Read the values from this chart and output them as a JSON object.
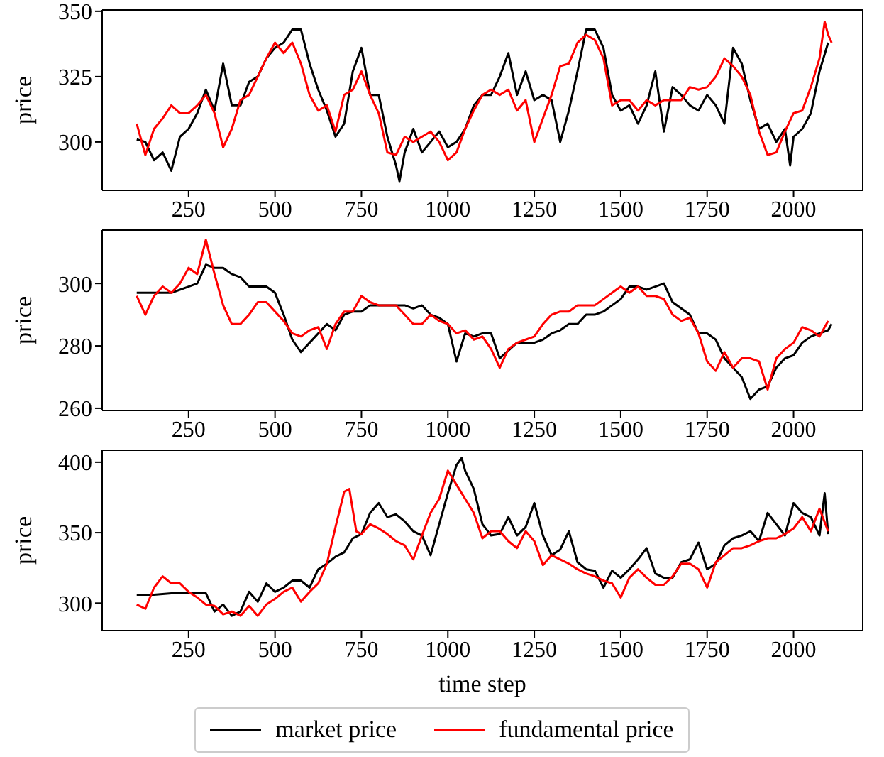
{
  "chart_data": [
    {
      "type": "line",
      "ylabel": "price",
      "legend": "bottom",
      "xlim": [
        0,
        2200
      ],
      "xticks": [
        250,
        500,
        750,
        1000,
        1250,
        1500,
        1750,
        2000
      ],
      "ylim": [
        281.5,
        350.5
      ],
      "yticks": [
        300,
        325,
        350
      ],
      "series": [
        {
          "name": "market price",
          "color": "#000000",
          "x": [
            100,
            125,
            150,
            175,
            200,
            225,
            250,
            275,
            300,
            325,
            350,
            375,
            400,
            425,
            450,
            475,
            500,
            525,
            550,
            575,
            600,
            625,
            650,
            675,
            700,
            725,
            750,
            775,
            800,
            825,
            850,
            860,
            875,
            900,
            925,
            950,
            975,
            1000,
            1025,
            1050,
            1075,
            1100,
            1125,
            1150,
            1175,
            1200,
            1225,
            1250,
            1275,
            1300,
            1325,
            1350,
            1375,
            1400,
            1425,
            1450,
            1475,
            1500,
            1525,
            1550,
            1575,
            1600,
            1625,
            1650,
            1675,
            1700,
            1725,
            1750,
            1775,
            1800,
            1825,
            1850,
            1875,
            1900,
            1925,
            1950,
            1975,
            1990,
            2000,
            2025,
            2050,
            2075,
            2100
          ],
          "values": [
            301,
            300,
            293,
            296,
            289,
            302,
            305,
            311,
            320,
            312,
            330,
            314,
            314,
            323,
            325,
            332,
            336,
            338,
            343,
            343,
            330,
            320,
            312,
            302,
            307,
            327,
            336,
            318,
            318,
            302,
            291,
            285,
            296,
            305,
            296,
            300,
            304,
            298,
            300,
            305,
            314,
            318,
            318,
            325,
            334,
            318,
            327,
            316,
            318,
            316,
            300,
            312,
            327,
            343,
            343,
            336,
            318,
            312,
            314,
            307,
            314,
            327,
            304,
            321,
            318,
            314,
            312,
            318,
            314,
            307,
            336,
            330,
            316,
            305,
            307,
            300,
            305,
            291,
            302,
            305,
            311,
            327,
            338
          ]
        },
        {
          "name": "fundamental price",
          "color": "#ff0000",
          "x": [
            100,
            125,
            150,
            175,
            200,
            225,
            250,
            275,
            300,
            325,
            350,
            375,
            400,
            425,
            450,
            475,
            500,
            525,
            550,
            575,
            600,
            625,
            650,
            675,
            700,
            725,
            750,
            775,
            800,
            825,
            850,
            875,
            900,
            925,
            950,
            975,
            1000,
            1025,
            1050,
            1075,
            1100,
            1125,
            1150,
            1175,
            1200,
            1225,
            1250,
            1275,
            1300,
            1325,
            1350,
            1375,
            1400,
            1425,
            1450,
            1475,
            1500,
            1525,
            1550,
            1575,
            1600,
            1625,
            1650,
            1675,
            1700,
            1725,
            1750,
            1775,
            1800,
            1825,
            1850,
            1875,
            1900,
            1925,
            1950,
            1975,
            2000,
            2025,
            2050,
            2075,
            2090,
            2100,
            2110
          ],
          "values": [
            307,
            295,
            305,
            309,
            314,
            311,
            311,
            314,
            318,
            311,
            298,
            305,
            316,
            318,
            325,
            332,
            338,
            334,
            338,
            330,
            318,
            312,
            314,
            304,
            318,
            320,
            327,
            318,
            311,
            296,
            295,
            302,
            300,
            302,
            304,
            300,
            293,
            296,
            305,
            312,
            318,
            320,
            318,
            320,
            312,
            316,
            300,
            309,
            318,
            329,
            330,
            338,
            341,
            339,
            332,
            314,
            316,
            316,
            312,
            316,
            314,
            316,
            316,
            316,
            321,
            320,
            321,
            325,
            332,
            329,
            325,
            318,
            304,
            295,
            296,
            304,
            311,
            312,
            321,
            332,
            346,
            341,
            338
          ]
        }
      ]
    },
    {
      "type": "line",
      "ylabel": "price",
      "xlim": [
        0,
        2200
      ],
      "xticks": [
        250,
        500,
        750,
        1000,
        1250,
        1500,
        1750,
        2000
      ],
      "ylim": [
        259.3,
        317.1
      ],
      "yticks": [
        260,
        280,
        300
      ],
      "series": [
        {
          "color": "#000000",
          "x": [
            100,
            150,
            200,
            250,
            275,
            300,
            325,
            350,
            375,
            400,
            425,
            450,
            475,
            500,
            525,
            550,
            575,
            600,
            625,
            650,
            675,
            700,
            725,
            750,
            775,
            800,
            825,
            850,
            875,
            900,
            925,
            950,
            975,
            1000,
            1025,
            1050,
            1075,
            1100,
            1125,
            1150,
            1200,
            1225,
            1250,
            1275,
            1300,
            1325,
            1350,
            1375,
            1400,
            1425,
            1450,
            1475,
            1500,
            1525,
            1550,
            1575,
            1600,
            1625,
            1650,
            1675,
            1700,
            1725,
            1750,
            1775,
            1800,
            1825,
            1850,
            1875,
            1900,
            1925,
            1950,
            1975,
            2000,
            2025,
            2050,
            2075,
            2100,
            2110
          ],
          "values": [
            297,
            297,
            297,
            299,
            300,
            306,
            305,
            305,
            303,
            302,
            299,
            299,
            299,
            297,
            290,
            282,
            278,
            281,
            284,
            287,
            285,
            290,
            291,
            291,
            293,
            293,
            293,
            293,
            293,
            292,
            293,
            290,
            289,
            287,
            275,
            284,
            283,
            284,
            284,
            276,
            281,
            281,
            281,
            282,
            284,
            285,
            287,
            287,
            290,
            290,
            291,
            293,
            295,
            299,
            299,
            298,
            299,
            300,
            294,
            292,
            290,
            284,
            284,
            282,
            276,
            273,
            270,
            263,
            266,
            267,
            273,
            276,
            277,
            281,
            283,
            284,
            285,
            287
          ]
        },
        {
          "color": "#ff0000",
          "x": [
            100,
            125,
            150,
            175,
            200,
            225,
            250,
            275,
            300,
            325,
            350,
            375,
            400,
            425,
            450,
            475,
            500,
            525,
            550,
            575,
            600,
            625,
            650,
            675,
            700,
            725,
            750,
            775,
            800,
            825,
            850,
            875,
            900,
            925,
            950,
            975,
            1000,
            1025,
            1050,
            1075,
            1100,
            1125,
            1150,
            1175,
            1200,
            1225,
            1250,
            1275,
            1300,
            1325,
            1350,
            1375,
            1400,
            1425,
            1450,
            1475,
            1500,
            1525,
            1550,
            1575,
            1600,
            1625,
            1650,
            1675,
            1700,
            1725,
            1750,
            1775,
            1800,
            1825,
            1850,
            1875,
            1900,
            1925,
            1950,
            1975,
            2000,
            2025,
            2050,
            2075,
            2100
          ],
          "values": [
            296,
            290,
            296,
            299,
            297,
            300,
            305,
            303,
            314,
            303,
            293,
            287,
            287,
            290,
            294,
            294,
            291,
            288,
            284,
            283,
            285,
            286,
            279,
            287,
            291,
            291,
            296,
            294,
            293,
            293,
            293,
            290,
            287,
            287,
            290,
            288,
            287,
            284,
            285,
            282,
            283,
            279,
            273,
            279,
            281,
            282,
            283,
            287,
            290,
            291,
            291,
            293,
            293,
            293,
            295,
            297,
            299,
            297,
            299,
            296,
            296,
            295,
            290,
            288,
            289,
            284,
            275,
            272,
            278,
            273,
            276,
            276,
            275,
            266,
            276,
            279,
            281,
            286,
            285,
            283,
            288
          ]
        }
      ]
    },
    {
      "type": "line",
      "ylabel": "price",
      "xlabel": "time step",
      "xlim": [
        0,
        2200
      ],
      "xticks": [
        250,
        500,
        750,
        1000,
        1250,
        1500,
        1750,
        2000
      ],
      "ylim": [
        280.5,
        408.5
      ],
      "yticks": [
        300,
        350,
        400
      ],
      "series": [
        {
          "color": "#000000",
          "x": [
            100,
            150,
            200,
            250,
            300,
            325,
            350,
            375,
            400,
            425,
            450,
            475,
            500,
            525,
            550,
            575,
            600,
            625,
            650,
            675,
            700,
            725,
            750,
            775,
            800,
            825,
            850,
            875,
            900,
            925,
            950,
            975,
            1000,
            1025,
            1040,
            1050,
            1075,
            1100,
            1125,
            1150,
            1175,
            1200,
            1225,
            1250,
            1275,
            1300,
            1325,
            1350,
            1375,
            1400,
            1425,
            1450,
            1475,
            1500,
            1525,
            1550,
            1575,
            1600,
            1625,
            1650,
            1675,
            1700,
            1725,
            1750,
            1775,
            1800,
            1825,
            1850,
            1875,
            1900,
            1925,
            1950,
            1975,
            2000,
            2025,
            2050,
            2075,
            2090,
            2100
          ],
          "values": [
            306,
            306,
            307,
            307,
            307,
            294,
            299,
            291,
            294,
            308,
            301,
            314,
            308,
            311,
            316,
            316,
            311,
            324,
            328,
            333,
            336,
            346,
            349,
            364,
            371,
            361,
            363,
            358,
            351,
            348,
            334,
            356,
            378,
            398,
            403,
            394,
            381,
            356,
            348,
            349,
            361,
            348,
            354,
            371,
            348,
            334,
            338,
            351,
            329,
            324,
            323,
            311,
            323,
            318,
            324,
            331,
            339,
            321,
            318,
            318,
            329,
            331,
            343,
            324,
            328,
            341,
            346,
            348,
            351,
            344,
            364,
            356,
            348,
            371,
            364,
            361,
            348,
            378,
            349
          ]
        },
        {
          "color": "#ff0000",
          "x": [
            100,
            125,
            150,
            175,
            200,
            225,
            250,
            275,
            300,
            325,
            350,
            375,
            400,
            425,
            450,
            475,
            500,
            525,
            550,
            575,
            600,
            625,
            650,
            675,
            700,
            715,
            735,
            750,
            775,
            800,
            825,
            850,
            875,
            900,
            925,
            950,
            975,
            1000,
            1025,
            1050,
            1075,
            1100,
            1125,
            1150,
            1175,
            1200,
            1225,
            1250,
            1275,
            1300,
            1325,
            1350,
            1375,
            1400,
            1425,
            1450,
            1475,
            1500,
            1525,
            1550,
            1575,
            1600,
            1625,
            1650,
            1675,
            1700,
            1725,
            1750,
            1775,
            1800,
            1825,
            1850,
            1875,
            1900,
            1925,
            1950,
            1975,
            2000,
            2025,
            2050,
            2075,
            2100
          ],
          "values": [
            299,
            296,
            311,
            319,
            314,
            314,
            308,
            304,
            299,
            298,
            292,
            294,
            291,
            298,
            291,
            299,
            303,
            308,
            311,
            301,
            308,
            314,
            328,
            354,
            379,
            381,
            351,
            349,
            356,
            353,
            349,
            344,
            341,
            331,
            348,
            364,
            374,
            394,
            384,
            374,
            364,
            346,
            351,
            351,
            344,
            339,
            351,
            344,
            327,
            334,
            331,
            328,
            324,
            321,
            319,
            316,
            314,
            304,
            318,
            324,
            318,
            313,
            313,
            319,
            328,
            328,
            324,
            311,
            329,
            334,
            339,
            339,
            341,
            344,
            346,
            346,
            349,
            353,
            361,
            351,
            367,
            351
          ]
        }
      ]
    }
  ]
}
